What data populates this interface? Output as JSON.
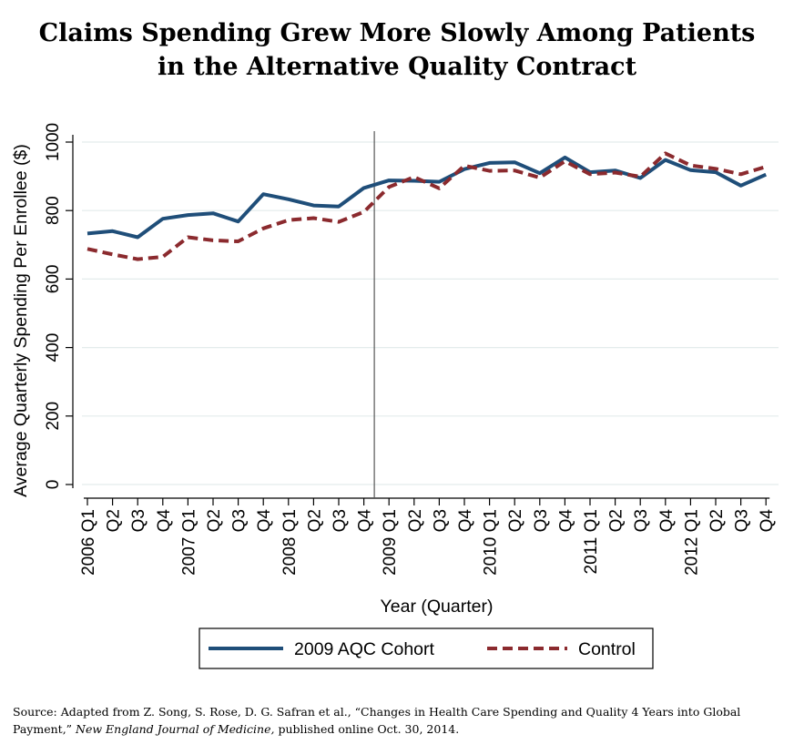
{
  "title_line1": "Claims Spending Grew More Slowly Among Patients",
  "title_line2": "in the Alternative Quality Contract",
  "source": {
    "prefix": "Source: Adapted from Z. Song, S. Rose, D. G. Safran et al., “Changes in Health Care Spending and Quality 4 Years into Global Payment,” ",
    "journal": "New England Journal of Medicine,",
    "suffix": " published online Oct. 30, 2014."
  },
  "colors": {
    "aqc": "#1f4e79",
    "control": "#8b2a2e",
    "grid": "#e3ecec",
    "axis": "#000000"
  },
  "chart_data": {
    "type": "line",
    "title": "Claims Spending Grew More Slowly Among Patients in the Alternative Quality Contract",
    "xlabel": "Year (Quarter)",
    "ylabel": "Average Quarterly Spending Per Enrollee ($)",
    "ylim": [
      0,
      1000
    ],
    "yticks": [
      0,
      200,
      400,
      600,
      800,
      1000
    ],
    "grid": true,
    "legend_position": "bottom",
    "vline_after_index": 11,
    "categories": [
      "2006 Q1",
      "Q2",
      "Q3",
      "Q4",
      "2007 Q1",
      "Q2",
      "Q3",
      "Q4",
      "2008 Q1",
      "Q2",
      "Q3",
      "Q4",
      "2009 Q1",
      "Q2",
      "Q3",
      "Q4",
      "2010 Q1",
      "Q2",
      "Q3",
      "Q4",
      "2011 Q1",
      "Q2",
      "Q3",
      "Q4",
      "2012 Q1",
      "Q2",
      "Q3",
      "Q4"
    ],
    "series": [
      {
        "name": "2009 AQC Cohort",
        "style": "solid",
        "values": [
          733,
          740,
          722,
          776,
          787,
          792,
          768,
          848,
          833,
          815,
          812,
          866,
          888,
          887,
          884,
          921,
          939,
          941,
          909,
          955,
          912,
          917,
          895,
          948,
          918,
          912,
          873,
          905
        ]
      },
      {
        "name": "Control",
        "style": "dashed",
        "values": [
          688,
          672,
          658,
          665,
          722,
          713,
          710,
          748,
          772,
          778,
          767,
          796,
          869,
          898,
          865,
          931,
          916,
          917,
          896,
          944,
          906,
          911,
          899,
          967,
          932,
          922,
          906,
          928
        ]
      }
    ]
  }
}
